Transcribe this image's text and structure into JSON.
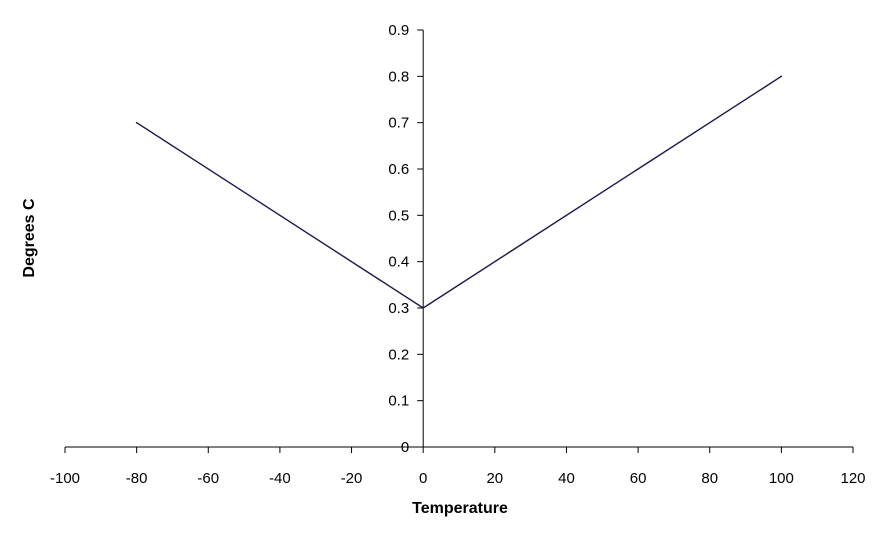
{
  "chart_data": {
    "type": "line",
    "title": "",
    "xlabel": "Temperature",
    "ylabel": "Degrees C",
    "xlim": [
      -100,
      120
    ],
    "ylim": [
      0,
      0.9
    ],
    "x_ticks": [
      -100,
      -80,
      -60,
      -40,
      -20,
      0,
      20,
      40,
      60,
      80,
      100,
      120
    ],
    "y_ticks": [
      0,
      0.1,
      0.2,
      0.3,
      0.4,
      0.5,
      0.6,
      0.7,
      0.8,
      0.9
    ],
    "grid": false,
    "legend": "none",
    "series": [
      {
        "color": "#1a1a4e",
        "x": [
          -80,
          0,
          100
        ],
        "y": [
          0.7,
          0.3,
          0.8
        ]
      }
    ]
  }
}
